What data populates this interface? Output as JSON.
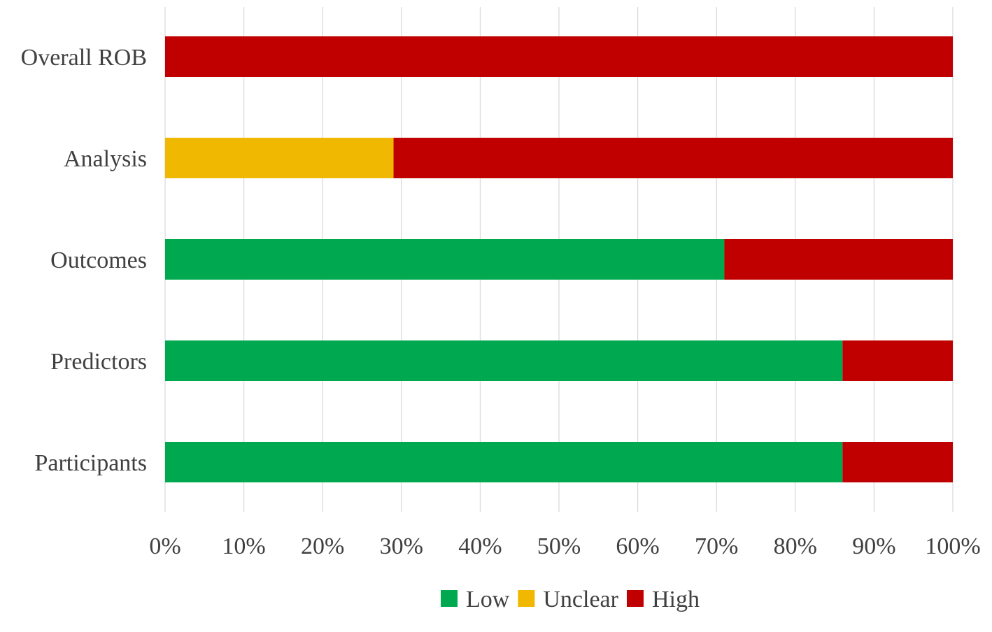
{
  "chart_data": {
    "type": "bar",
    "orientation": "horizontal",
    "stacked": true,
    "categories": [
      "Overall ROB",
      "Analysis",
      "Outcomes",
      "Predictors",
      "Participants"
    ],
    "series": [
      {
        "name": "Low",
        "values": [
          0,
          0,
          71,
          86,
          86
        ]
      },
      {
        "name": "Unclear",
        "values": [
          0,
          29,
          0,
          0,
          0
        ]
      },
      {
        "name": "High",
        "values": [
          100,
          71,
          29,
          14,
          14
        ]
      }
    ],
    "colors": {
      "Low": "#00a94f",
      "Unclear": "#f0b800",
      "High": "#c00000"
    },
    "xlim": [
      0,
      100
    ],
    "xticks": [
      "0%",
      "10%",
      "20%",
      "30%",
      "40%",
      "50%",
      "60%",
      "70%",
      "80%",
      "90%",
      "100%"
    ],
    "xtick_values": [
      0,
      10,
      20,
      30,
      40,
      50,
      60,
      70,
      80,
      90,
      100
    ],
    "grid": true,
    "legend": "bottom",
    "title": "",
    "xlabel": "",
    "ylabel": ""
  }
}
